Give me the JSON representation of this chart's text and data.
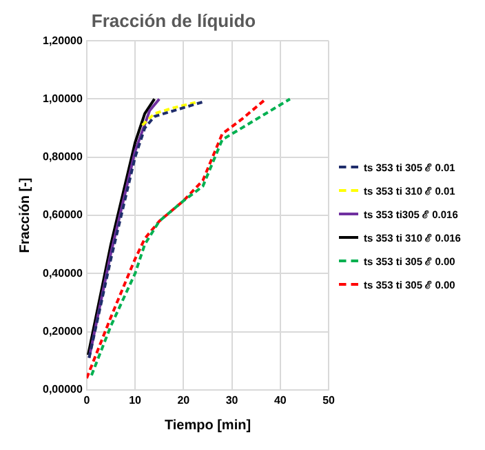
{
  "chart_data": {
    "type": "line",
    "title": "Fracción de líquido",
    "xlabel": "Tiempo [min]",
    "ylabel": "Fracción [-]",
    "xlim": [
      0,
      50
    ],
    "xticks": [
      0,
      10,
      20,
      30,
      40,
      50
    ],
    "ylim": [
      0,
      1.2
    ],
    "yticks": [
      {
        "value": 0,
        "label": "0,00000"
      },
      {
        "value": 0.2,
        "label": "0,20000"
      },
      {
        "value": 0.4,
        "label": "0,40000"
      },
      {
        "value": 0.6,
        "label": "0,60000"
      },
      {
        "value": 0.8,
        "label": "0,80000"
      },
      {
        "value": 1,
        "label": "1,00000"
      },
      {
        "value": 1.2,
        "label": "1,20000"
      }
    ],
    "grid": true,
    "legend": "right",
    "marker": "none",
    "series": [
      {
        "name": "ts 353 ti 305  ℰ 0.01",
        "color": "#1f2d6b",
        "line_style": "dashed",
        "x": [
          0.5,
          5,
          10,
          12,
          14,
          18,
          22,
          24
        ],
        "values": [
          0.11,
          0.45,
          0.8,
          0.9,
          0.94,
          0.96,
          0.98,
          0.99
        ]
      },
      {
        "name": "ts 353 ti 310  ℰ 0.01",
        "color": "#ffff00",
        "line_style": "dashed",
        "x": [
          11.5,
          14,
          18,
          23
        ],
        "values": [
          0.91,
          0.95,
          0.97,
          0.99
        ]
      },
      {
        "name": "ts 353 ti305  ℰ 0.016",
        "color": "#7030a0",
        "line_style": "solid",
        "x": [
          0.5,
          5,
          10,
          13,
          15
        ],
        "values": [
          0.11,
          0.47,
          0.82,
          0.96,
          1
        ]
      },
      {
        "name": "ts 353 ti 310  ℰ 0.016",
        "color": "#000000",
        "line_style": "solid",
        "x": [
          0.3,
          5,
          10,
          12,
          14
        ],
        "values": [
          0.12,
          0.5,
          0.85,
          0.95,
          1
        ]
      },
      {
        "name": "ts 353 ti 305  ℰ 0.00",
        "color": "#00b050",
        "line_style": "dashed",
        "x": [
          1,
          5,
          10,
          12,
          15,
          20,
          24,
          26,
          28,
          32,
          36,
          42
        ],
        "values": [
          0.05,
          0.22,
          0.4,
          0.5,
          0.58,
          0.65,
          0.7,
          0.78,
          0.86,
          0.9,
          0.94,
          1
        ]
      },
      {
        "name": "ts 353 ti 305  ℰ 0.00",
        "color": "#ff0000",
        "line_style": "dashed",
        "x": [
          0,
          5,
          10,
          12,
          15,
          20,
          24,
          26,
          28,
          32,
          37
        ],
        "values": [
          0.04,
          0.25,
          0.45,
          0.52,
          0.58,
          0.65,
          0.72,
          0.8,
          0.88,
          0.93,
          1
        ]
      }
    ]
  }
}
